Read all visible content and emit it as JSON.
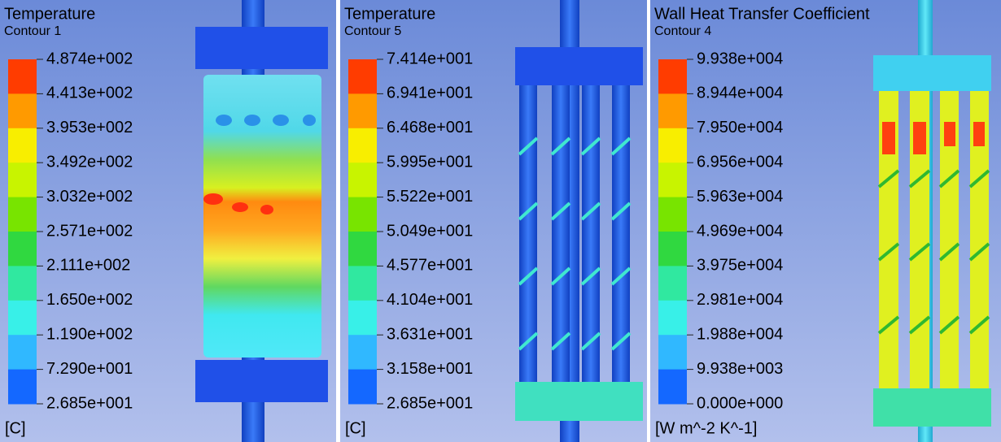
{
  "panels": [
    {
      "title": "Temperature",
      "subtitle": "Contour 1",
      "levels": [
        "4.874e+002",
        "4.413e+002",
        "3.953e+002",
        "3.492e+002",
        "3.032e+002",
        "2.571e+002",
        "2.111e+002",
        "1.650e+002",
        "1.190e+002",
        "7.290e+001",
        "2.685e+001"
      ],
      "unit": "[C]"
    },
    {
      "title": "Temperature",
      "subtitle": "Contour 5",
      "levels": [
        "7.414e+001",
        "6.941e+001",
        "6.468e+001",
        "5.995e+001",
        "5.522e+001",
        "5.049e+001",
        "4.577e+001",
        "4.104e+001",
        "3.631e+001",
        "3.158e+001",
        "2.685e+001"
      ],
      "unit": "[C]"
    },
    {
      "title": "Wall Heat Transfer Coefficient",
      "subtitle": "Contour 4",
      "levels": [
        "9.938e+004",
        "8.944e+004",
        "7.950e+004",
        "6.956e+004",
        "5.963e+004",
        "4.969e+004",
        "3.975e+004",
        "2.981e+004",
        "1.988e+004",
        "9.938e+003",
        "0.000e+000"
      ],
      "unit": "[W m^-2 K^-1]"
    }
  ]
}
